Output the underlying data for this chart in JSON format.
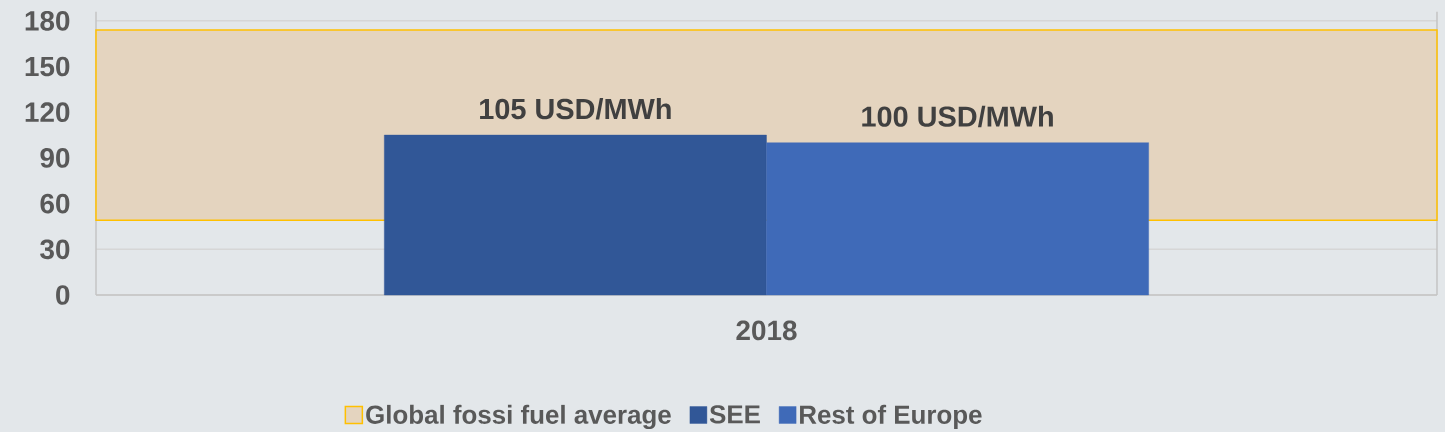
{
  "chart_data": {
    "type": "bar",
    "categories": [
      "2018"
    ],
    "series": [
      {
        "name": "SEE",
        "color": "#315797",
        "values": [
          105
        ],
        "value_labels": [
          "105 USD/MWh"
        ]
      },
      {
        "name": "Rest of Europe",
        "color": "#3f6ab8",
        "values": [
          100
        ],
        "value_labels": [
          "100 USD/MWh"
        ]
      }
    ],
    "ylim": [
      0,
      186
    ],
    "yticks": [
      0,
      30,
      60,
      90,
      120,
      150,
      180
    ],
    "grid": "y",
    "legend": "bottom",
    "bands": [
      {
        "axis": "y",
        "from": 49,
        "to": 174,
        "label": "Global fossi fuel average",
        "color": "#e4d4bf"
      }
    ]
  }
}
